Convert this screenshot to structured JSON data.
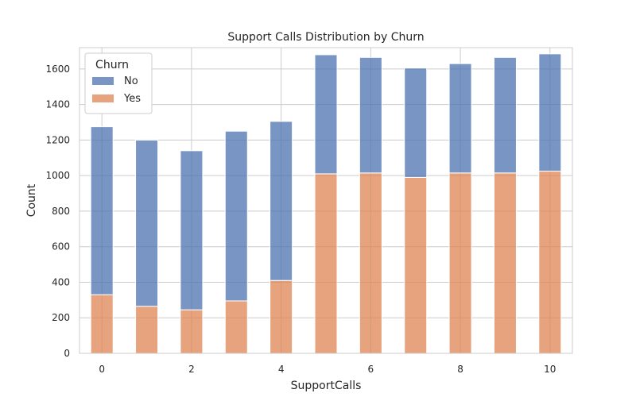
{
  "chart_data": {
    "type": "bar",
    "stacked": true,
    "title": "Support Calls Distribution by Churn",
    "xlabel": "SupportCalls",
    "ylabel": "Count",
    "x": [
      0,
      1,
      2,
      3,
      4,
      5,
      6,
      7,
      8,
      9,
      10
    ],
    "series": [
      {
        "name": "No",
        "color": "#4c72b0",
        "values": [
          945,
          935,
          895,
          955,
          895,
          670,
          650,
          615,
          615,
          650,
          660
        ]
      },
      {
        "name": "Yes",
        "color": "#dd8452",
        "values": [
          330,
          265,
          245,
          295,
          410,
          1010,
          1015,
          990,
          1015,
          1015,
          1025
        ]
      }
    ],
    "xlim": [
      -0.5,
      10.5
    ],
    "ylim": [
      0,
      1720
    ],
    "xticks": [
      0,
      2,
      4,
      6,
      8,
      10
    ],
    "yticks": [
      0,
      200,
      400,
      600,
      800,
      1000,
      1200,
      1400,
      1600
    ],
    "grid": true,
    "legend": {
      "title": "Churn",
      "placement": "top-left"
    }
  }
}
